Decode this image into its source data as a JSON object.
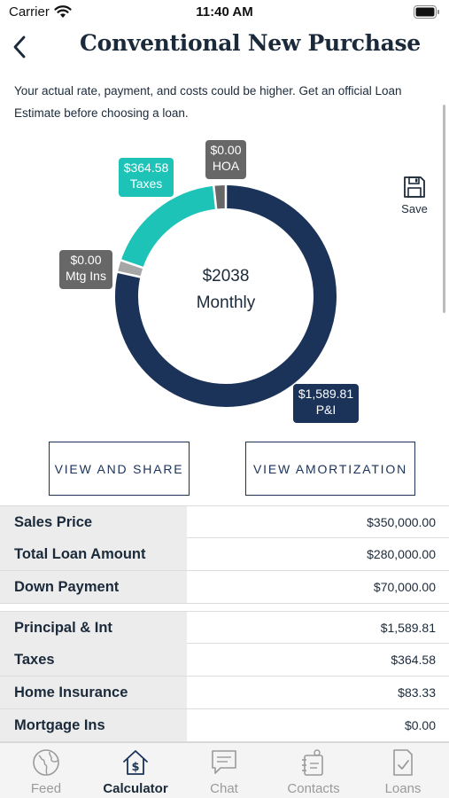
{
  "status_bar": {
    "carrier": "Carrier",
    "time": "11:40 AM"
  },
  "header": {
    "title": "Conventional New Purchase"
  },
  "disclaimer": "Your actual rate, payment, and costs could be higher. Get an official Loan Estimate before choosing a loan.",
  "donut": {
    "center_amount": "$2038",
    "center_caption": "Monthly",
    "segments": [
      {
        "key": "pi",
        "amount": "$1,589.81",
        "label": "P&I",
        "value": 1589.81,
        "color": "#1b3259"
      },
      {
        "key": "mtg",
        "amount": "$0.00",
        "label": "Mtg Ins",
        "value": 0,
        "color": "#a6a6a6"
      },
      {
        "key": "taxes",
        "amount": "$364.58",
        "label": "Taxes",
        "value": 364.58,
        "color": "#1ec3b8"
      },
      {
        "key": "hoa",
        "amount": "$0.00",
        "label": "HOA",
        "value": 0,
        "color": "#676767"
      }
    ]
  },
  "save": {
    "label": "Save",
    "icon": "floppy-disk-icon"
  },
  "buttons": {
    "share": "VIEW AND SHARE",
    "amortization": "VIEW AMORTIZATION"
  },
  "loan_summary": [
    {
      "label": "Sales Price",
      "value": "$350,000.00"
    },
    {
      "label": "Total Loan Amount",
      "value": "$280,000.00"
    },
    {
      "label": "Down Payment",
      "value": "$70,000.00"
    }
  ],
  "payment_breakdown": [
    {
      "label": "Principal & Int",
      "value": "$1,589.81"
    },
    {
      "label": "Taxes",
      "value": "$364.58"
    },
    {
      "label": "Home Insurance",
      "value": "$83.33"
    },
    {
      "label": "Mortgage Ins",
      "value": "$0.00"
    }
  ],
  "tabs": [
    {
      "label": "Feed",
      "icon": "globe-icon",
      "active": false
    },
    {
      "label": "Calculator",
      "icon": "calculator-house-icon",
      "active": true
    },
    {
      "label": "Chat",
      "icon": "chat-icon",
      "active": false
    },
    {
      "label": "Contacts",
      "icon": "contacts-icon",
      "active": false
    },
    {
      "label": "Loans",
      "icon": "loans-document-icon",
      "active": false
    }
  ],
  "colors": {
    "navy": "#1b3259",
    "teal": "#1ec3b8",
    "gray": "#676767",
    "light_gray": "#a6a6a6",
    "row_label_bg": "#ececec",
    "tab_bar_bg": "#f4f4f4"
  }
}
